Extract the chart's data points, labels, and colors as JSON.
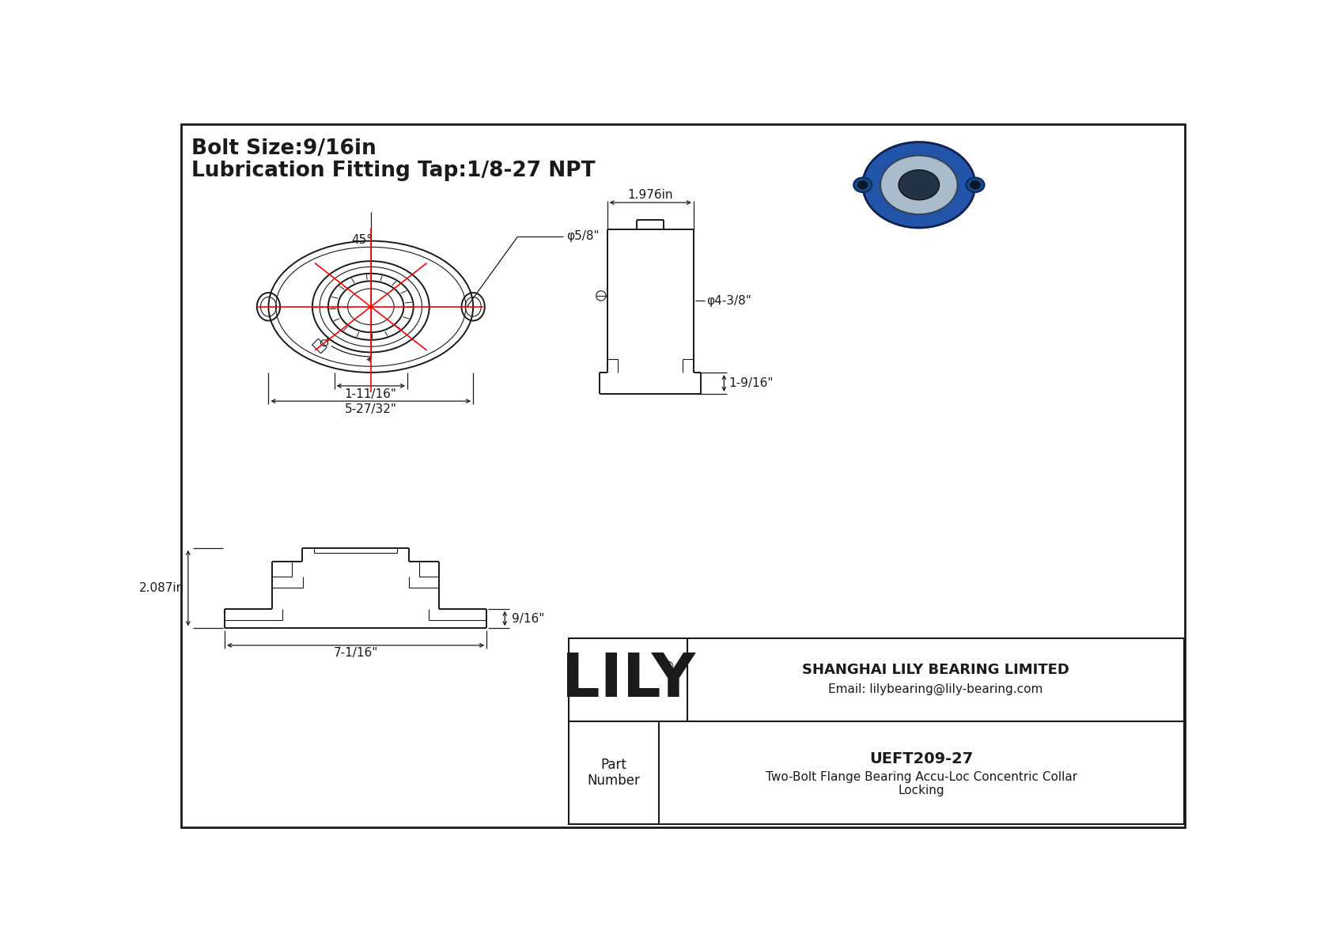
{
  "bg_color": "#ffffff",
  "line_color": "#1a1a1a",
  "red_color": "#ff0000",
  "dim_color": "#1a1a1a",
  "title_line1": "Bolt Size:9/16in",
  "title_line2": "Lubrication Fitting Tap:1/8-27 NPT",
  "company": "SHANGHAI LILY BEARING LIMITED",
  "email": "Email: lilybearing@lily-bearing.com",
  "part_label": "Part\nNumber",
  "part_number": "UEFT209-27",
  "part_desc": "Two-Bolt Flange Bearing Accu-Loc Concentric Collar\nLocking",
  "lily_text": "LILY",
  "dim_5_27_32": "5-27/32\"",
  "dim_1_11_16": "1-11/16\"",
  "dim_phi_5_8": "φ5/8\"",
  "dim_45deg": "45°",
  "dim_1_976": "1.976in",
  "dim_phi_4_3_8": "φ4-3/8\"",
  "dim_1_9_16_side": "1-9/16\"",
  "dim_9_16_bottom": "9/16\"",
  "dim_2_087": "2.087in",
  "dim_7_1_16": "7-1/16\""
}
